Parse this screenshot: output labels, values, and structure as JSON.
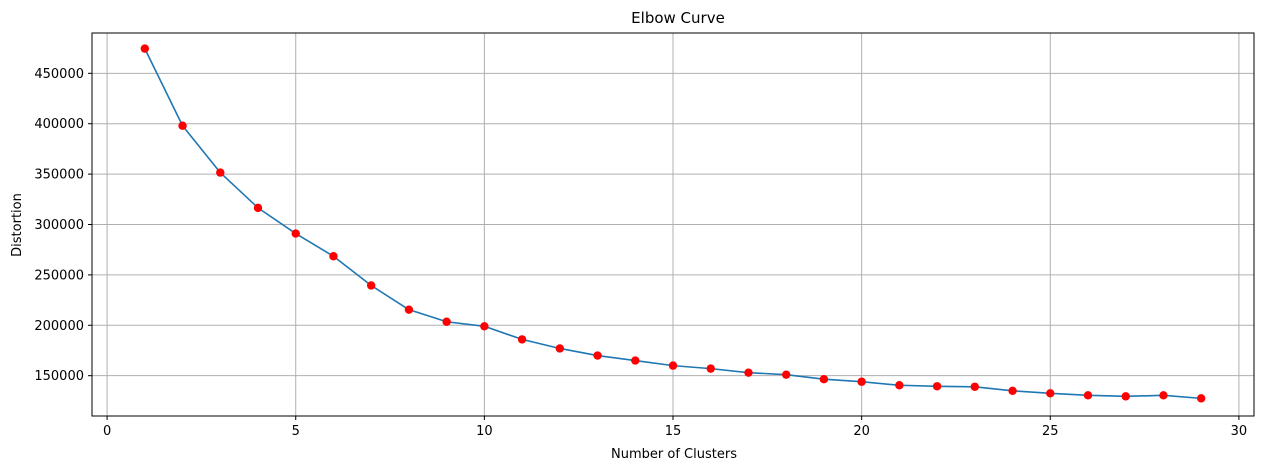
{
  "chart_data": {
    "type": "line",
    "title": "Elbow Curve",
    "xlabel": "Number of Clusters",
    "ylabel": "Distortion",
    "xlim": [
      -0.4,
      30.4
    ],
    "ylim": [
      110000,
      490000
    ],
    "xticks": [
      0,
      5,
      10,
      15,
      20,
      25,
      30
    ],
    "yticks": [
      150000,
      200000,
      250000,
      300000,
      350000,
      400000,
      450000
    ],
    "grid": true,
    "line_color": "#1f77b4",
    "marker_color": "#ff0000",
    "series": [
      {
        "x": [
          1,
          2,
          3,
          4,
          5,
          6,
          7,
          8,
          9,
          10,
          11,
          12,
          13,
          14,
          15,
          16,
          17,
          18,
          19,
          20,
          21,
          22,
          23,
          24,
          25,
          26,
          27,
          28,
          29
        ],
        "values": [
          474500,
          398000,
          351500,
          316500,
          291000,
          268500,
          239500,
          215500,
          203500,
          199000,
          186000,
          177000,
          170000,
          165000,
          160000,
          157000,
          153000,
          151000,
          146500,
          144000,
          140500,
          139500,
          139000,
          135000,
          132500,
          130500,
          129500,
          130500,
          127500
        ]
      }
    ]
  }
}
